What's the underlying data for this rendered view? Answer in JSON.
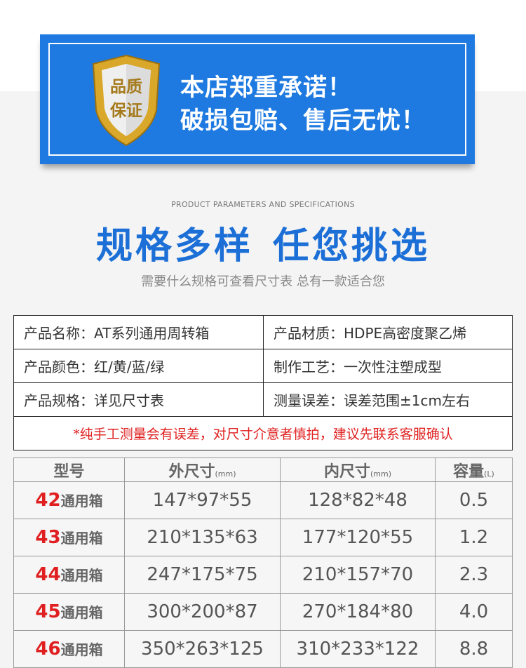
{
  "banner": {
    "badge_line1": "品质",
    "badge_line2": "保证",
    "line1": "本店郑重承诺！",
    "line2": "破损包赔、售后无忧！",
    "color": "#1e7ae0"
  },
  "heading": {
    "en": "PRODUCT PARAMETERS AND SPECIFICATIONS",
    "title_a": "规格多样",
    "title_b": "任您挑选",
    "desc": "需要什么规格可查看尺寸表  总有一款适合您"
  },
  "spec": {
    "rows": [
      [
        "产品名称：AT系列通用周转箱",
        "产品材质：HDPE高密度聚乙烯"
      ],
      [
        "产品颜色：红/黄/蓝/绿",
        "制作工艺：一次性注塑成型"
      ],
      [
        "产品规格：详见尺寸表",
        "测量误差：误差范围±1cm左右"
      ]
    ],
    "note": "*纯手工测量会有误差，对尺寸介意者慎拍，建议先联系客服确认"
  },
  "sizes": {
    "headers": [
      {
        "label": "型号",
        "unit": ""
      },
      {
        "label": "外尺寸",
        "unit": "(mm)"
      },
      {
        "label": "内尺寸",
        "unit": "(mm)"
      },
      {
        "label": "容量",
        "unit": "(L)"
      }
    ],
    "rows": [
      {
        "model": "42",
        "type": "通用箱",
        "outer": "147*97*55",
        "inner": "128*82*48",
        "capacity": "0.5"
      },
      {
        "model": "43",
        "type": "通用箱",
        "outer": "210*135*63",
        "inner": "177*120*55",
        "capacity": "1.2"
      },
      {
        "model": "44",
        "type": "通用箱",
        "outer": "247*175*75",
        "inner": "210*157*70",
        "capacity": "2.3"
      },
      {
        "model": "45",
        "type": "通用箱",
        "outer": "300*200*87",
        "inner": "270*184*80",
        "capacity": "4.0"
      },
      {
        "model": "46",
        "type": "通用箱",
        "outer": "350*263*125",
        "inner": "310*233*122",
        "capacity": "8.8"
      }
    ]
  }
}
